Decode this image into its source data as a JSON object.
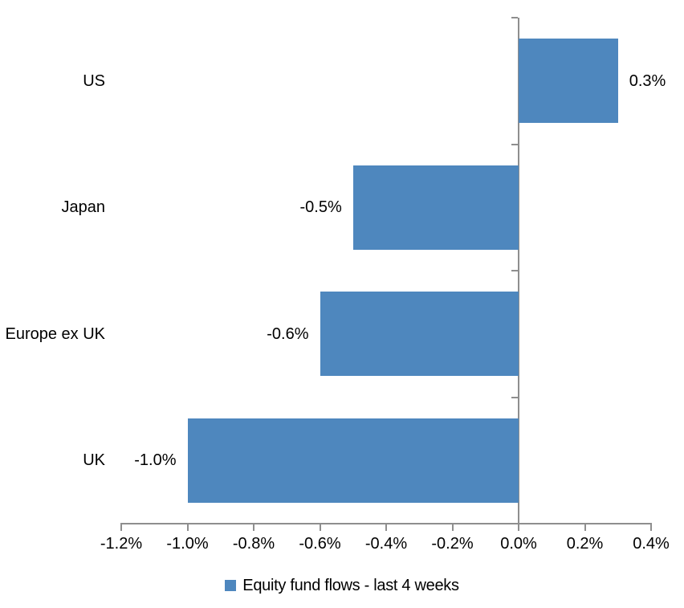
{
  "chart_data": {
    "type": "bar",
    "orientation": "horizontal",
    "title": "",
    "categories": [
      "US",
      "Japan",
      "Europe ex UK",
      "UK"
    ],
    "values": [
      0.3,
      -0.5,
      -0.6,
      -1.0
    ],
    "data_labels": [
      "0.3%",
      "-0.5%",
      "-0.6%",
      "-1.0%"
    ],
    "series_name": "Equity fund flows - last 4 weeks",
    "xlabel": "",
    "ylabel": "",
    "xlim": [
      -1.2,
      0.4
    ],
    "x_tick_values": [
      -1.2,
      -1.0,
      -0.8,
      -0.6,
      -0.4,
      -0.2,
      0.0,
      0.2,
      0.4
    ],
    "x_tick_labels": [
      "-1.2%",
      "-1.0%",
      "-0.8%",
      "-0.6%",
      "-0.4%",
      "-0.2%",
      "0.0%",
      "0.2%",
      "0.4%"
    ],
    "grid": false,
    "legend_position": "bottom",
    "colors": {
      "bar": "#4E87BE",
      "axis": "#8E8E8E",
      "text": "#000000",
      "background": "#FFFFFF"
    }
  },
  "legend": {
    "label": "Equity fund flows - last 4 weeks"
  }
}
